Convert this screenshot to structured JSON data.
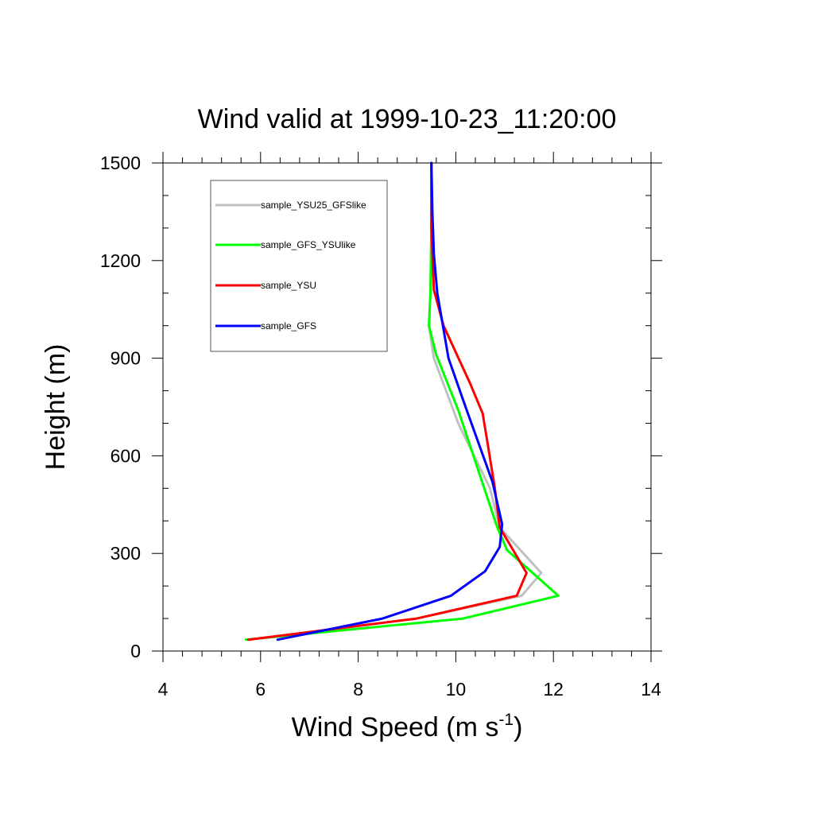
{
  "chart_data": {
    "type": "line",
    "title": "Wind valid at 1999-10-23_11:20:00",
    "xlabel": "Wind Speed (m s",
    "xlabel_superscript": "-1",
    "xlabel_suffix": ")",
    "ylabel": "Height (m)",
    "xlim": [
      4,
      14
    ],
    "ylim": [
      0,
      1500
    ],
    "x_ticks": [
      4,
      6,
      8,
      10,
      12,
      14
    ],
    "y_ticks": [
      0,
      300,
      600,
      900,
      1200,
      1500
    ],
    "x_minor_step": 0.4,
    "y_minor_step": 100,
    "grid": false,
    "legend_position": "top-left",
    "series": [
      {
        "name": "sample_YSU25_GFSlike",
        "color": "#c0c0c0",
        "x": [
          5.75,
          9.2,
          11.35,
          11.75,
          10.9,
          10.7,
          10.05,
          9.55,
          9.45,
          9.48,
          9.5,
          9.5
        ],
        "y": [
          35,
          100,
          170,
          240,
          380,
          500,
          700,
          900,
          1000,
          1100,
          1300,
          1500
        ]
      },
      {
        "name": "sample_GFS_YSUlike",
        "color": "#00ff00",
        "x": [
          5.7,
          10.15,
          12.1,
          11.05,
          10.85,
          10.05,
          9.6,
          9.45,
          9.48,
          9.5,
          9.5
        ],
        "y": [
          35,
          100,
          170,
          310,
          380,
          740,
          910,
          1000,
          1100,
          1300,
          1500
        ]
      },
      {
        "name": "sample_YSU",
        "color": "#ff0000",
        "x": [
          5.75,
          9.2,
          11.25,
          11.45,
          10.9,
          10.8,
          10.65,
          10.55,
          10.3,
          9.75,
          9.55,
          9.5,
          9.5
        ],
        "y": [
          35,
          100,
          170,
          240,
          380,
          500,
          640,
          730,
          820,
          1000,
          1110,
          1300,
          1500
        ]
      },
      {
        "name": "sample_GFS",
        "color": "#0000ff",
        "x": [
          6.35,
          8.5,
          9.9,
          10.6,
          10.9,
          10.95,
          10.75,
          10.2,
          9.85,
          9.62,
          9.55,
          9.52,
          9.5
        ],
        "y": [
          35,
          100,
          170,
          245,
          320,
          390,
          520,
          750,
          900,
          1100,
          1220,
          1350,
          1500
        ]
      }
    ]
  }
}
